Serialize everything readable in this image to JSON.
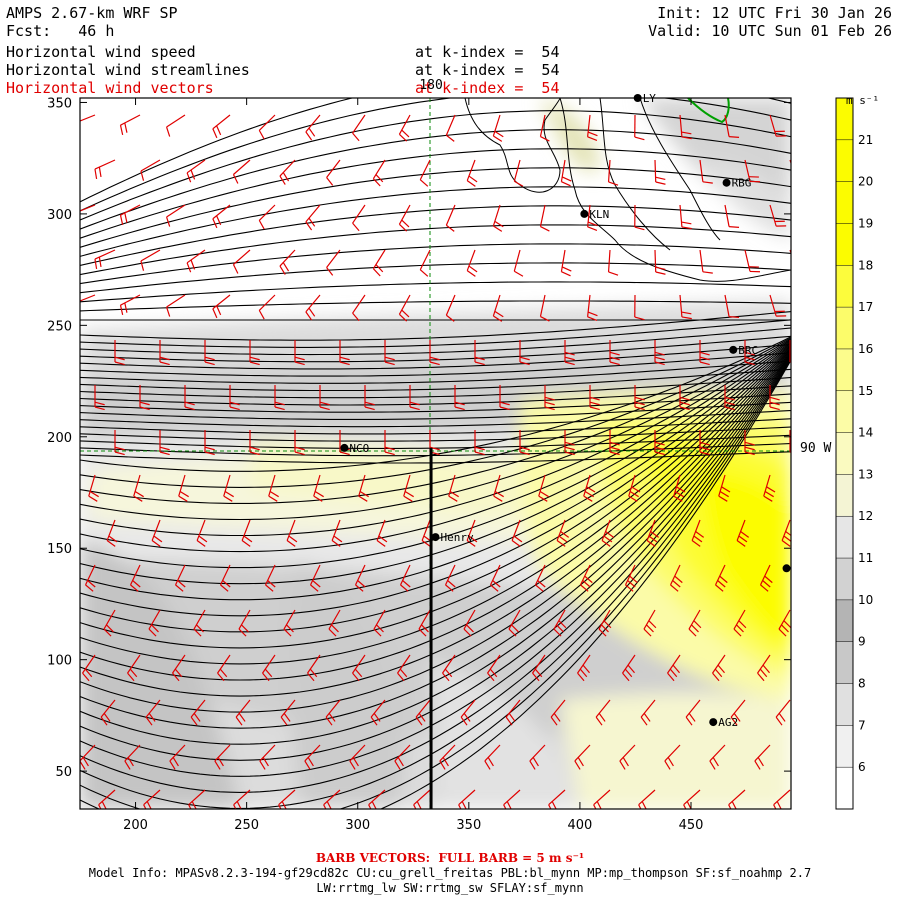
{
  "header": {
    "model": "AMPS 2.67-km WRF SP",
    "init": "Init: 12 UTC Fri 30 Jan 26",
    "fcst": "Fcst:   46 h",
    "valid": "Valid: 10 UTC Sun 01 Feb 26",
    "fields": [
      {
        "name": "Horizontal wind speed",
        "level": "at k-index =  54",
        "color": "#000000"
      },
      {
        "name": "Horizontal wind streamlines",
        "level": "at k-index =  54",
        "color": "#000000"
      },
      {
        "name": "Horizontal wind vectors",
        "level": "at k-index =  54",
        "color": "#e00000"
      }
    ]
  },
  "chart_data": {
    "type": "heatmap",
    "title": "Horizontal wind speed",
    "xlim": [
      175,
      495
    ],
    "ylim": [
      33,
      352
    ],
    "x_ticks": [
      200,
      250,
      300,
      350,
      400,
      450
    ],
    "y_ticks": [
      50,
      100,
      150,
      200,
      250,
      300,
      350
    ],
    "grid": false,
    "colorbar": {
      "unit": "m s⁻¹",
      "levels": [
        6,
        7,
        8,
        9,
        10,
        11,
        12,
        13,
        14,
        15,
        16,
        17,
        18,
        19,
        20,
        21
      ],
      "colors": [
        "#ffffff",
        "#f0f0f0",
        "#e0e0e0",
        "#c8c8c8",
        "#b4b4b4",
        "#d2d2d2",
        "#e6e6e6",
        "#f4f4d4",
        "#fafac0",
        "#fcfca6",
        "#fcfc8c",
        "#fcfc6a",
        "#fcfc3c",
        "#fcfc00",
        "#fcfc00",
        "#fcfc00",
        "#fcfc00"
      ]
    },
    "meridians": [
      {
        "label": "180",
        "x": 333
      }
    ],
    "parallels": [
      {
        "label": "90 W",
        "y": 195
      }
    ],
    "stations": [
      {
        "name": "LY",
        "x": 426,
        "y": 352
      },
      {
        "name": "RBG",
        "x": 466,
        "y": 314
      },
      {
        "name": "KLN",
        "x": 402,
        "y": 300
      },
      {
        "name": "BRC",
        "x": 469,
        "y": 239
      },
      {
        "name": "NCO",
        "x": 294,
        "y": 195
      },
      {
        "name": "Henry",
        "x": 335,
        "y": 155
      },
      {
        "name": "",
        "x": 493,
        "y": 141
      },
      {
        "name": "AG2",
        "x": 460,
        "y": 72
      }
    ],
    "cross_section": {
      "x": 333,
      "y": [
        33,
        195
      ]
    }
  },
  "footer": {
    "barb_note": "BARB VECTORS:  FULL BARB = 5 m s⁻¹",
    "model_info": "Model Info: MPASv8.2.3-194-gf29cd82c CU:cu_grell_freitas PBL:bl_mynn MP:mp_thompson SF:sf_noahmp 2.7",
    "model_info2": "LW:rrtmg_lw SW:rrtmg_sw SFLAY:sf_mynn"
  }
}
